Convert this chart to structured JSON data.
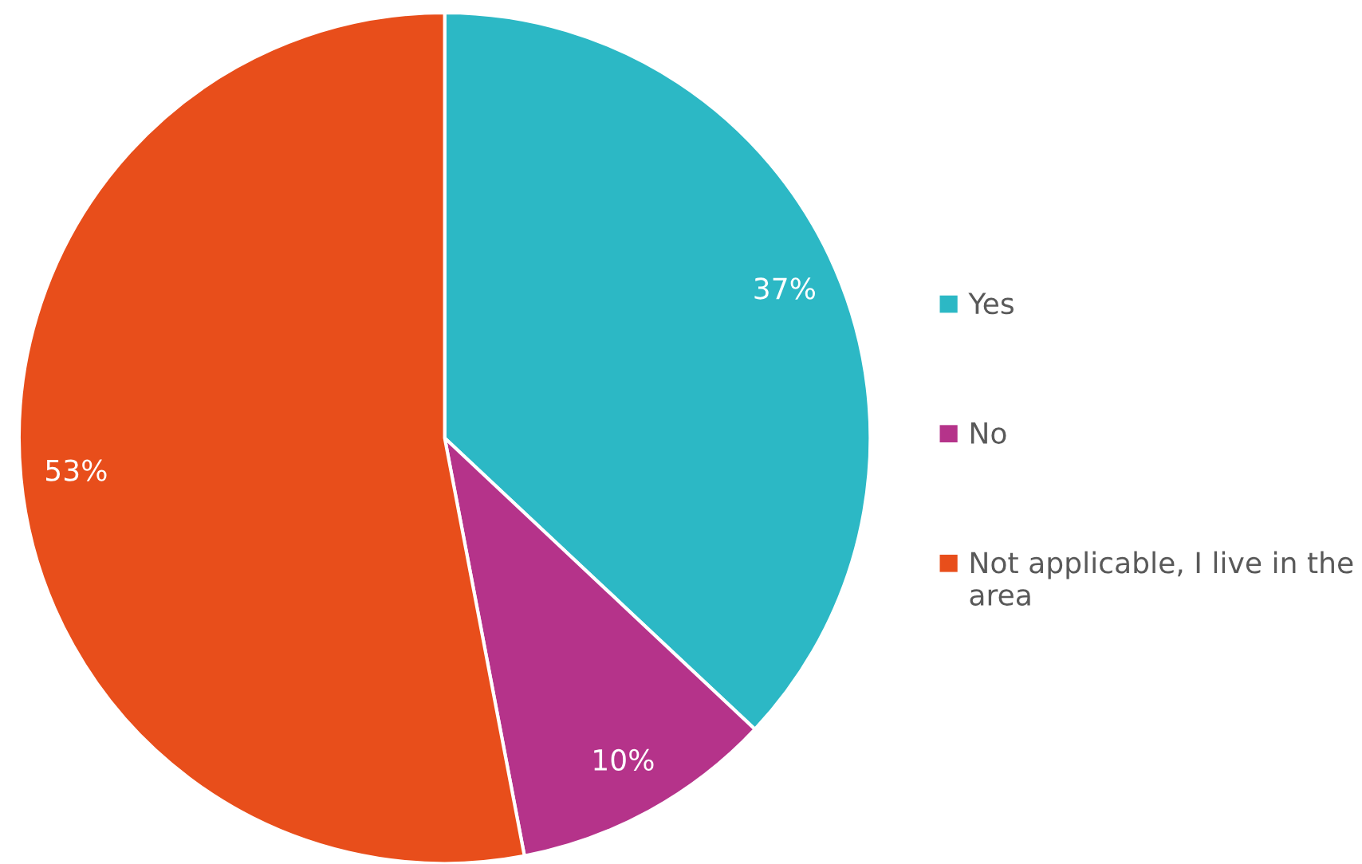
{
  "chart_data": {
    "type": "pie",
    "categories": [
      "Yes",
      "No",
      "Not applicable, I live in the area"
    ],
    "values": [
      37,
      10,
      53
    ],
    "colors": [
      "#2cb8c5",
      "#b5338a",
      "#e84e1b"
    ],
    "value_labels": [
      "37%",
      "10%",
      "53%"
    ],
    "legend": "right"
  }
}
